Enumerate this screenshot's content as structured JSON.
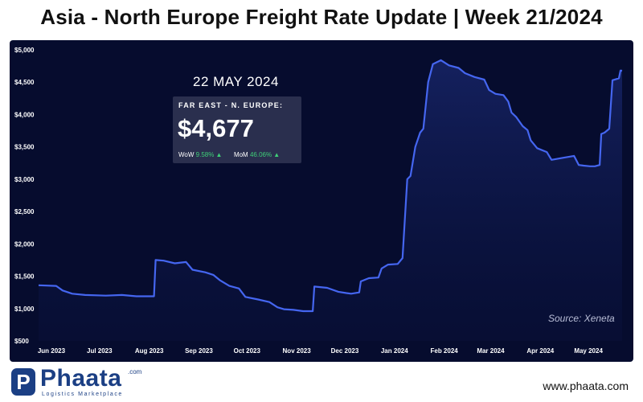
{
  "title": "Asia - North Europe Freight Rate Update | Week 21/2024",
  "card": {
    "date": "22 MAY 2024",
    "route": "FAR EAST - N. EUROPE:",
    "price": "$4,677",
    "wow_label": "WoW",
    "wow_value": "9.58% ▲",
    "mom_label": "MoM",
    "mom_value": "46.06% ▲"
  },
  "source": "Source: Xeneta",
  "logo": {
    "badge": "P",
    "name": "Phaata",
    "suffix": ".com",
    "tagline": "Logistics Marketplace"
  },
  "website": "www.phaata.com",
  "colors": {
    "background": "#060c2e",
    "line": "#4566f0",
    "positive": "#3fcf78"
  },
  "chart_data": {
    "type": "line",
    "title": "",
    "xlabel": "",
    "ylabel": "",
    "ylim": [
      500,
      5000
    ],
    "yticks": [
      "$500",
      "$1,000",
      "$1,500",
      "$2,000",
      "$2,500",
      "$3,000",
      "$3,500",
      "$4,000",
      "$4,500",
      "$5,000"
    ],
    "yticks_values": [
      500,
      1000,
      1500,
      2000,
      2500,
      3000,
      3500,
      4000,
      4500,
      5000
    ],
    "x_start": "2023-05-24",
    "x_end": "2024-05-22",
    "xticks": [
      {
        "label": "Jun 2023",
        "date": "2023-06-01"
      },
      {
        "label": "Jul 2023",
        "date": "2023-07-01"
      },
      {
        "label": "Aug 2023",
        "date": "2023-08-01"
      },
      {
        "label": "Sep 2023",
        "date": "2023-09-01"
      },
      {
        "label": "Oct 2023",
        "date": "2023-10-01"
      },
      {
        "label": "Nov 2023",
        "date": "2023-11-01"
      },
      {
        "label": "Dec 2023",
        "date": "2023-12-01"
      },
      {
        "label": "Jan 2024",
        "date": "2024-01-01"
      },
      {
        "label": "Feb 2024",
        "date": "2024-02-01"
      },
      {
        "label": "Mar 2024",
        "date": "2024-03-01"
      },
      {
        "label": "Apr 2024",
        "date": "2024-04-01"
      },
      {
        "label": "May 2024",
        "date": "2024-05-01"
      }
    ],
    "grid": false,
    "series": [
      {
        "points": [
          [
            "2023-05-24",
            1360
          ],
          [
            "2023-06-04",
            1350
          ],
          [
            "2023-06-08",
            1280
          ],
          [
            "2023-06-14",
            1230
          ],
          [
            "2023-06-22",
            1210
          ],
          [
            "2023-07-05",
            1200
          ],
          [
            "2023-07-15",
            1210
          ],
          [
            "2023-07-24",
            1190
          ],
          [
            "2023-08-01",
            1190
          ],
          [
            "2023-08-04",
            1190
          ],
          [
            "2023-08-05",
            1750
          ],
          [
            "2023-08-10",
            1740
          ],
          [
            "2023-08-17",
            1700
          ],
          [
            "2023-08-24",
            1720
          ],
          [
            "2023-08-28",
            1600
          ],
          [
            "2023-09-05",
            1560
          ],
          [
            "2023-09-10",
            1520
          ],
          [
            "2023-09-14",
            1440
          ],
          [
            "2023-09-20",
            1350
          ],
          [
            "2023-09-26",
            1310
          ],
          [
            "2023-09-30",
            1180
          ],
          [
            "2023-10-08",
            1140
          ],
          [
            "2023-10-15",
            1100
          ],
          [
            "2023-10-20",
            1020
          ],
          [
            "2023-10-24",
            990
          ],
          [
            "2023-10-30",
            980
          ],
          [
            "2023-11-05",
            960
          ],
          [
            "2023-11-11",
            960
          ],
          [
            "2023-11-12",
            1340
          ],
          [
            "2023-11-20",
            1320
          ],
          [
            "2023-11-27",
            1260
          ],
          [
            "2023-12-02",
            1240
          ],
          [
            "2023-12-05",
            1230
          ],
          [
            "2023-12-10",
            1250
          ],
          [
            "2023-12-11",
            1420
          ],
          [
            "2023-12-16",
            1470
          ],
          [
            "2023-12-22",
            1480
          ],
          [
            "2023-12-24",
            1620
          ],
          [
            "2023-12-28",
            1680
          ],
          [
            "2024-01-03",
            1690
          ],
          [
            "2024-01-06",
            1780
          ],
          [
            "2024-01-09",
            3000
          ],
          [
            "2024-01-11",
            3050
          ],
          [
            "2024-01-14",
            3500
          ],
          [
            "2024-01-17",
            3720
          ],
          [
            "2024-01-19",
            3780
          ],
          [
            "2024-01-22",
            4500
          ],
          [
            "2024-01-25",
            4780
          ],
          [
            "2024-01-30",
            4840
          ],
          [
            "2024-02-04",
            4760
          ],
          [
            "2024-02-10",
            4720
          ],
          [
            "2024-02-14",
            4640
          ],
          [
            "2024-02-20",
            4580
          ],
          [
            "2024-02-26",
            4540
          ],
          [
            "2024-02-29",
            4380
          ],
          [
            "2024-03-04",
            4320
          ],
          [
            "2024-03-09",
            4300
          ],
          [
            "2024-03-12",
            4200
          ],
          [
            "2024-03-14",
            4030
          ],
          [
            "2024-03-17",
            3960
          ],
          [
            "2024-03-21",
            3820
          ],
          [
            "2024-03-24",
            3760
          ],
          [
            "2024-03-26",
            3600
          ],
          [
            "2024-03-30",
            3480
          ],
          [
            "2024-04-05",
            3420
          ],
          [
            "2024-04-08",
            3300
          ],
          [
            "2024-04-15",
            3330
          ],
          [
            "2024-04-22",
            3360
          ],
          [
            "2024-04-25",
            3220
          ],
          [
            "2024-04-28",
            3210
          ],
          [
            "2024-05-02",
            3200
          ],
          [
            "2024-05-05",
            3200
          ],
          [
            "2024-05-08",
            3220
          ],
          [
            "2024-05-09",
            3700
          ],
          [
            "2024-05-11",
            3720
          ],
          [
            "2024-05-14",
            3780
          ],
          [
            "2024-05-16",
            4530
          ],
          [
            "2024-05-20",
            4560
          ],
          [
            "2024-05-21",
            4680
          ],
          [
            "2024-05-22",
            4677
          ]
        ]
      }
    ]
  }
}
